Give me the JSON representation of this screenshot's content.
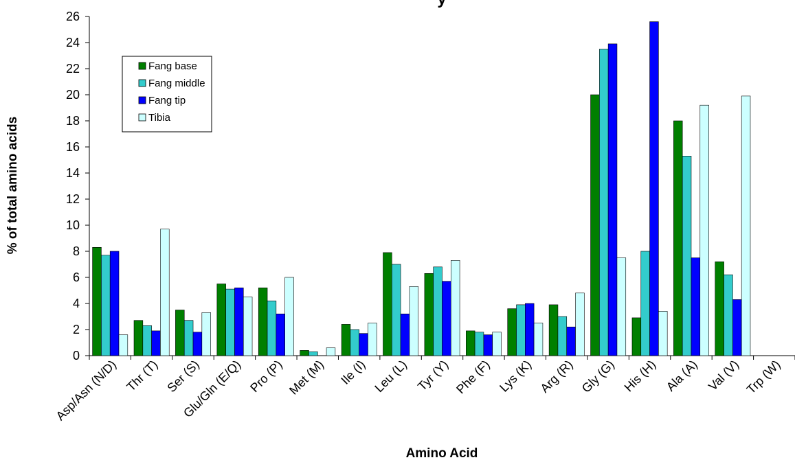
{
  "chart_data": {
    "type": "bar",
    "title": "y",
    "xlabel": "Amino Acid",
    "ylabel": "% of total amino acids",
    "ylim": [
      0,
      26
    ],
    "yticks": [
      0,
      2,
      4,
      6,
      8,
      10,
      12,
      14,
      16,
      18,
      20,
      22,
      24,
      26
    ],
    "grid": false,
    "legend_position": "top-left",
    "categories": [
      "Asp/Asn (N/D)",
      "Thr (T)",
      "Ser (S)",
      "Glu/Gln (E/Q)",
      "Pro (P)",
      "Met (M)",
      "Ile (I)",
      "Leu (L)",
      "Tyr (Y)",
      "Phe (F)",
      "Lys (K)",
      "Arg (R)",
      "Gly (G)",
      "His (H)",
      "Ala (A)",
      "Val (V)",
      "Trp (W)"
    ],
    "series": [
      {
        "name": "Fang base",
        "color": "#007f00",
        "values": [
          8.3,
          2.7,
          3.5,
          5.5,
          5.2,
          0.4,
          2.4,
          7.9,
          6.3,
          1.9,
          3.6,
          3.9,
          20.0,
          2.9,
          18.0,
          7.2,
          0
        ]
      },
      {
        "name": "Fang middle",
        "color": "#33cccc",
        "values": [
          7.7,
          2.3,
          2.7,
          5.1,
          4.2,
          0.3,
          2.0,
          7.0,
          6.8,
          1.8,
          3.9,
          3.0,
          23.5,
          8.0,
          15.3,
          6.2,
          0
        ]
      },
      {
        "name": "Fang tip",
        "color": "#0000ff",
        "values": [
          8.0,
          1.9,
          1.8,
          5.2,
          3.2,
          0.0,
          1.7,
          3.2,
          5.7,
          1.6,
          4.0,
          2.2,
          23.9,
          25.6,
          7.5,
          4.3,
          0
        ]
      },
      {
        "name": "Tibia",
        "color": "#ccffff",
        "values": [
          1.6,
          9.7,
          3.3,
          4.5,
          6.0,
          0.6,
          2.5,
          5.3,
          7.3,
          1.8,
          2.5,
          4.8,
          7.5,
          3.4,
          19.2,
          19.9,
          0
        ]
      }
    ]
  }
}
